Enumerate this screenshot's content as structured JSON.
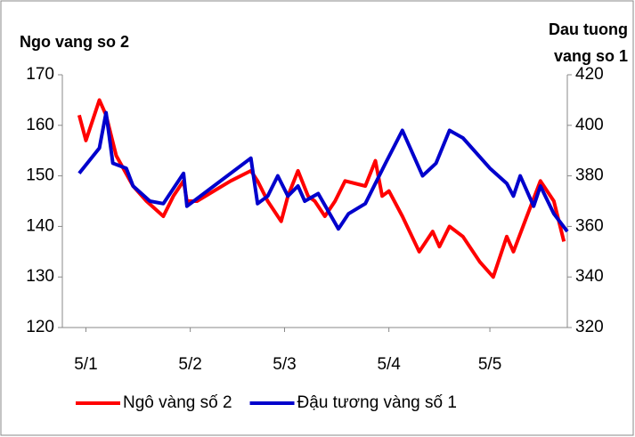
{
  "chart_data": {
    "type": "line",
    "y_title": "Ngo vang so 2",
    "y2_title": [
      "Dau tuong",
      "vang so 1"
    ],
    "xlim": [
      0,
      150
    ],
    "xticks": [
      {
        "value": 7,
        "label": "5/1"
      },
      {
        "value": 38,
        "label": "5/2"
      },
      {
        "value": 66,
        "label": "5/3"
      },
      {
        "value": 97,
        "label": "5/4"
      },
      {
        "value": 127,
        "label": "5/5"
      }
    ],
    "ylim": [
      120,
      170
    ],
    "yticks": [
      120,
      130,
      140,
      150,
      160,
      170
    ],
    "y2lim": [
      320,
      420
    ],
    "y2ticks": [
      320,
      340,
      360,
      380,
      400,
      420
    ],
    "grid": false,
    "legend": "bottom",
    "series": [
      {
        "name": "Ngô vàng số 2",
        "color": "#ff0000",
        "x": [
          5,
          7,
          11,
          13,
          16,
          21,
          25,
          30,
          33,
          36,
          37,
          40,
          45,
          50,
          56,
          58,
          61,
          65,
          67,
          70,
          73,
          75,
          78,
          81,
          84,
          90,
          93,
          95,
          97,
          101,
          106,
          110,
          112,
          115,
          119,
          124,
          128,
          132,
          134,
          138,
          142,
          146,
          149
        ],
        "values": [
          162,
          157,
          165,
          162,
          154,
          148,
          145,
          142,
          146,
          149,
          145,
          145,
          147,
          149,
          151,
          149,
          145,
          141,
          146,
          151,
          146,
          145,
          142,
          145,
          149,
          148,
          153,
          146,
          147,
          142,
          135,
          139,
          136,
          140,
          138,
          133,
          130,
          138,
          135,
          142,
          149,
          145,
          137
        ]
      },
      {
        "name": "Đậu tương vàng số 1",
        "color": "#0000cc",
        "axis": "y2",
        "x": [
          5,
          11,
          13,
          15,
          19,
          21,
          26,
          30,
          33,
          36,
          37,
          45,
          56,
          58,
          61,
          64,
          67,
          70,
          72,
          76,
          82,
          85,
          90,
          93,
          96,
          101,
          107,
          111,
          115,
          119,
          127,
          132,
          134,
          136,
          140,
          142,
          146,
          150
        ],
        "values": [
          381,
          391,
          405,
          385,
          383,
          376,
          370,
          369,
          375,
          381,
          368,
          376,
          387,
          369,
          372,
          380,
          372,
          376,
          370,
          373,
          359,
          365,
          369,
          377,
          385,
          398,
          380,
          385,
          398,
          395,
          383,
          377,
          372,
          380,
          368,
          376,
          365,
          358
        ]
      }
    ]
  }
}
